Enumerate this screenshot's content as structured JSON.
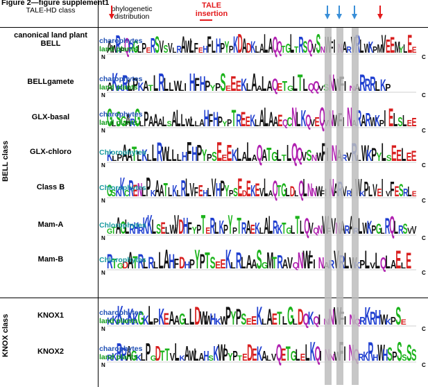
{
  "figure_title": "Figure 2—figure supplement1",
  "headers": {
    "class_col": "TALE-HD class",
    "distribution_col": "phylogenetic distribution",
    "tale_insertion": "TALE insertion"
  },
  "class_groups": {
    "bell": "BELL class",
    "knox": "KNOX class"
  },
  "terminal_labels": {
    "n": "N",
    "c": "C"
  },
  "colors": {
    "charophytes": "#1f4fb4",
    "land_plants": "#119a1a",
    "chlorophytes": "#17999e",
    "red_arrow": "#e31a1c",
    "blue_arrow": "#3a8fd8",
    "highlight_band": "#bdbdbd"
  },
  "rows": [
    {
      "label": "canonical land plant BELL",
      "dist": [
        "charophytes",
        "land plants"
      ],
      "logo": "AWRPQRGLPERSVSVLRAWLFEHFLHPYPKDADKLALAQQTGLTRSQVSNWFINARVRLWKPMVEEMYLEE"
    },
    {
      "label": "BELLgamete",
      "dist": [
        "charophytes",
        "land plants"
      ],
      "logo": "AKKRLPKATLRLLWLIHFHPYPSEEEKLAALAQETGLTLQQVSNWFINARRRLKP"
    },
    {
      "label": "GLX-basal",
      "dist": [
        "charophytes",
        "land plants"
      ],
      "logo": "GLSGARGLPAAALSALLWLLAHFHPYPTREEKLALAAEQCNLKQVEQVNWFINARARWKPIELSLEE"
    },
    {
      "label": "GLX-chloro",
      "dist": [
        "Chlorophytes"
      ],
      "logo": "KLPAATLKLLRWLLLHFHPYPSEEEKLALAQATGLTLQQVSNWFINARVRLWKPYLSEELEE"
    },
    {
      "label": "Class B",
      "dist": [
        "Chlorophytes"
      ],
      "logo": "GSKKCRENLPKAATLKLRLVFEHLVHPYPSEDEKEVLAQTGLDLQLNNWFINARVRIWKPLVEIVFESRLE"
    },
    {
      "label": "Mam-A",
      "dist": [
        "Chlorophytes"
      ],
      "logo": "GTAGLRHRKKLSELWVDHFYPTERLKPYPTRAEKLALRKTGLTLQVQNWFVNARARLWKPGLRQLRSVV"
    },
    {
      "label": "Mam-B",
      "dist": [
        "Chlorophytes"
      ],
      "logo": "RTGDATRLRLLAHFDHPYPTSEEKLRLAASGMTRAVQNWFINARVRLWKPLVLQLAELE"
    },
    {
      "label": "KNOX1",
      "dist": [
        "charophytes",
        "land plants"
      ],
      "logo": "KKKKKKGKLPKEAAGLLDWWHKWPYPSEEKLAETLGLDQKQINNWFINQRKRHWKPSE"
    },
    {
      "label": "KNOX2",
      "dist": [
        "charophytes",
        "land plants"
      ],
      "logo": "RKRRAGKLPGDTTVLKAWLAHSKWPYPTEDEKALVQETGLELKQINNWFINQRKRHWHSPSSSS"
    }
  ]
}
